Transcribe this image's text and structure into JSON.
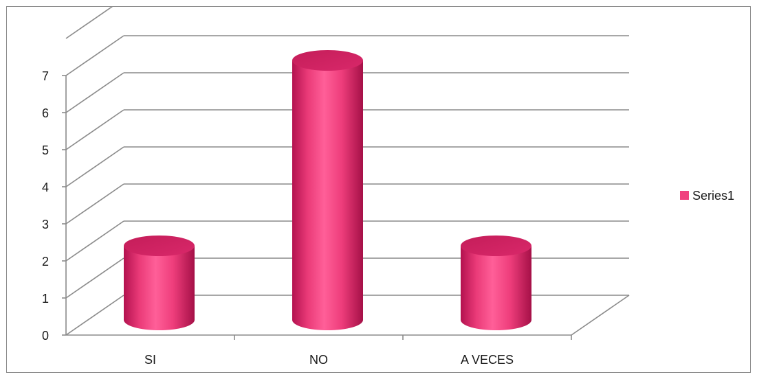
{
  "chart_data": {
    "type": "bar",
    "style": "3d-cylinder",
    "categories": [
      "SI",
      "NO",
      "A VECES"
    ],
    "series": [
      {
        "name": "Series1",
        "values": [
          2,
          7,
          2
        ],
        "color": "#f0437f"
      }
    ],
    "ylim": [
      0,
      7
    ],
    "yticks": [
      "0",
      "1",
      "2",
      "3",
      "4",
      "5",
      "6",
      "7"
    ],
    "grid": true,
    "legend": "right"
  }
}
